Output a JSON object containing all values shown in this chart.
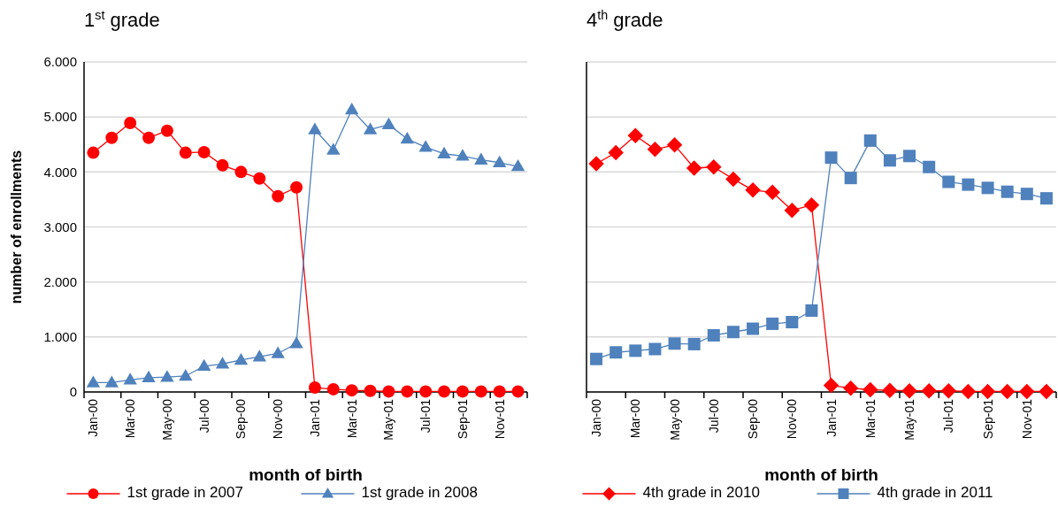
{
  "chart_data": [
    {
      "type": "line",
      "title": "1$^{st}$ grade",
      "xlabel": "month of birth",
      "ylabel": "number of enrollments",
      "categories": [
        "Jan-00",
        null,
        "Mar-00",
        null,
        "May-00",
        null,
        "Jul-00",
        null,
        "Sep-00",
        null,
        "Nov-00",
        null,
        "Jan-01",
        null,
        "Mar-01",
        null,
        "May-01",
        null,
        "Jul-01",
        null,
        "Sep-01",
        null,
        "Nov-01",
        null
      ],
      "series": [
        {
          "name": "1st grade in 2007",
          "color": "#ff0000",
          "marker": "circle",
          "values": [
            4350,
            4620,
            4890,
            4620,
            4750,
            4350,
            4360,
            4120,
            4000,
            3880,
            3560,
            3720,
            80,
            50,
            30,
            20,
            10,
            10,
            10,
            10,
            10,
            10,
            10,
            10
          ]
        },
        {
          "name": "1st grade in 2008",
          "color": "#4f81bd",
          "marker": "triangle",
          "values": [
            170,
            170,
            220,
            260,
            270,
            290,
            470,
            510,
            580,
            640,
            700,
            880,
            4770,
            4400,
            5130,
            4770,
            4860,
            4600,
            4450,
            4330,
            4290,
            4220,
            4170,
            4100
          ]
        }
      ],
      "ylim": [
        0,
        6000
      ],
      "yticks": [
        0,
        {
          "value": 1000,
          "label": "1.000"
        },
        {
          "value": 2000,
          "label": "2.000"
        },
        {
          "value": 3000,
          "label": "3.000"
        },
        {
          "value": 4000,
          "label": "4.000"
        },
        {
          "value": 5000,
          "label": "5.000"
        },
        {
          "value": 6000,
          "label": "6.000"
        }
      ],
      "grid": "y",
      "legend": "bottom"
    },
    {
      "type": "line",
      "title": "4$^{th}$ grade",
      "xlabel": "month of birth",
      "categories": [
        "Jan-00",
        null,
        "Mar-00",
        null,
        "May-00",
        null,
        "Jul-00",
        null,
        "Sep-00",
        null,
        "Nov-00",
        null,
        "Jan-01",
        null,
        "Mar-01",
        null,
        "May-01",
        null,
        "Jul-01",
        null,
        "Sep-01",
        null,
        "Nov-01",
        null
      ],
      "series": [
        {
          "name": "4th grade in 2010",
          "color": "#ff0000",
          "marker": "diamond",
          "values": [
            4150,
            4350,
            4660,
            4410,
            4490,
            4070,
            4090,
            3870,
            3670,
            3630,
            3300,
            3400,
            120,
            70,
            40,
            30,
            20,
            20,
            20,
            10,
            10,
            10,
            10,
            10
          ]
        },
        {
          "name": "4th grade in 2011",
          "color": "#4f81bd",
          "marker": "square",
          "values": [
            600,
            720,
            750,
            780,
            880,
            870,
            1030,
            1090,
            1150,
            1240,
            1270,
            1480,
            4260,
            3890,
            4570,
            4210,
            4290,
            4090,
            3820,
            3770,
            3710,
            3640,
            3600,
            3520
          ]
        }
      ],
      "ylim": [
        0,
        6000
      ],
      "grid": "y",
      "legend": "bottom",
      "tick_labels": "x",
      "yticks": [
        0,
        1000,
        2000,
        3000,
        4000,
        5000,
        6000
      ]
    }
  ]
}
